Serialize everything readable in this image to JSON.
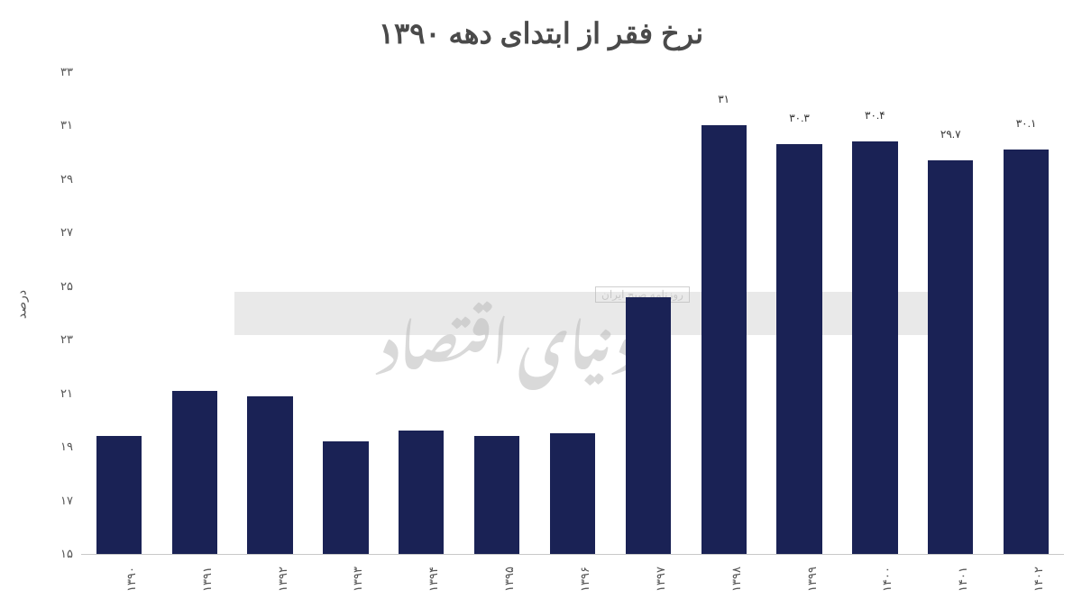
{
  "chart": {
    "type": "bar",
    "title": "نرخ فقر از ابتدای دهه ۱۳۹۰",
    "title_fontsize": 32,
    "title_color": "#4a4a4a",
    "ylabel": "درصد",
    "label_fontsize": 14,
    "label_color": "#555555",
    "ylim_min": 15,
    "ylim_max": 33,
    "ytick_step": 2,
    "yticks": [
      "۱۵",
      "۱۷",
      "۱۹",
      "۲۱",
      "۲۳",
      "۲۵",
      "۲۷",
      "۲۹",
      "۳۱",
      "۳۳"
    ],
    "ytick_values": [
      15,
      17,
      19,
      21,
      23,
      25,
      27,
      29,
      31,
      33
    ],
    "categories": [
      "۱۳۹۰",
      "۱۳۹۱",
      "۱۳۹۲",
      "۱۳۹۳",
      "۱۳۹۴",
      "۱۳۹۵",
      "۱۳۹۶",
      "۱۳۹۷",
      "۱۳۹۸",
      "۱۳۹۹",
      "۱۴۰۰",
      "۱۴۰۱",
      "۱۴۰۲"
    ],
    "values": [
      19.4,
      21.1,
      20.9,
      19.2,
      19.6,
      19.4,
      19.5,
      24.6,
      31,
      30.3,
      30.4,
      29.7,
      30.1
    ],
    "bar_labels": [
      "",
      "",
      "",
      "",
      "",
      "",
      "",
      "",
      "۳۱",
      "۳۰.۳",
      "۳۰.۴",
      "۲۹.۷",
      "۳۰.۱"
    ],
    "bar_color": "#1a2255",
    "background_color": "#ffffff",
    "grid_color": "#c9c9c9",
    "bar_width_ratio": 0.6,
    "tick_fontsize": 13,
    "tick_color": "#555555",
    "data_label_fontsize": 12
  },
  "watermark": {
    "band_color": "#d7d7d7",
    "main_text": "دنیای اقتصاد",
    "sub_text": "روزنامه صبح ایران",
    "text_color": "#bbbbbb"
  }
}
